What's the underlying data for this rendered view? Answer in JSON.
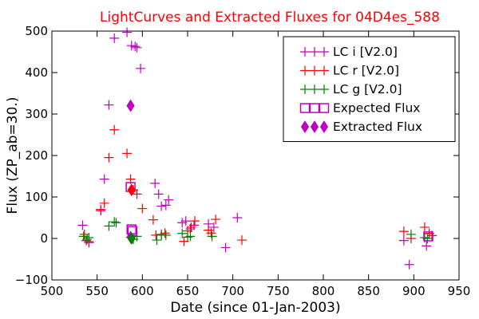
{
  "chart_data": {
    "type": "scatter",
    "title": "LightCurves and Extracted Fluxes for 04D4es_588",
    "xlabel": "Date (since 01-Jan-2003)",
    "ylabel": "Flux (ZP_ab=30.)",
    "xlim": [
      500,
      950
    ],
    "ylim": [
      -100,
      500
    ],
    "xticks": [
      500,
      550,
      600,
      650,
      700,
      750,
      800,
      850,
      900,
      950
    ],
    "yticks": [
      -100,
      0,
      100,
      200,
      300,
      400,
      500
    ],
    "grid": false,
    "legend_position": "top-right",
    "colors": {
      "title": "#ff0000",
      "i": "#bf00bf",
      "r": "#ff0000",
      "g": "#008000",
      "expected": "#bf00bf",
      "extracted": "#bf00bf"
    },
    "series": [
      {
        "name": "LC i [V2.0]",
        "marker": "plus",
        "color": "#bf00bf",
        "points": [
          [
            534,
            32
          ],
          [
            538,
            -5
          ],
          [
            541,
            -10
          ],
          [
            554,
            67
          ],
          [
            558,
            143
          ],
          [
            563,
            322
          ],
          [
            569,
            483
          ],
          [
            583,
            497
          ],
          [
            588,
            465
          ],
          [
            592,
            463
          ],
          [
            594,
            460
          ],
          [
            598,
            410
          ],
          [
            614,
            133
          ],
          [
            618,
            107
          ],
          [
            621,
            78
          ],
          [
            626,
            80
          ],
          [
            629,
            93
          ],
          [
            644,
            38
          ],
          [
            648,
            42
          ],
          [
            653,
            23
          ],
          [
            657,
            32
          ],
          [
            673,
            35
          ],
          [
            679,
            27
          ],
          [
            692,
            -22
          ],
          [
            705,
            50
          ],
          [
            889,
            -5
          ],
          [
            895,
            -63
          ],
          [
            914,
            -18
          ],
          [
            917,
            12
          ]
        ]
      },
      {
        "name": "LC r [V2.0]",
        "marker": "plus",
        "color": "#ff0000",
        "points": [
          [
            536,
            10
          ],
          [
            541,
            -8
          ],
          [
            554,
            70
          ],
          [
            558,
            85
          ],
          [
            563,
            195
          ],
          [
            569,
            262
          ],
          [
            583,
            205
          ],
          [
            587,
            143
          ],
          [
            590,
            117
          ],
          [
            594,
            107
          ],
          [
            600,
            72
          ],
          [
            612,
            45
          ],
          [
            615,
            8
          ],
          [
            621,
            10
          ],
          [
            625,
            13
          ],
          [
            646,
            -7
          ],
          [
            650,
            18
          ],
          [
            654,
            27
          ],
          [
            658,
            42
          ],
          [
            673,
            20
          ],
          [
            676,
            13
          ],
          [
            681,
            46
          ],
          [
            710,
            -4
          ],
          [
            889,
            17
          ],
          [
            897,
            0
          ],
          [
            912,
            27
          ],
          [
            917,
            12
          ],
          [
            920,
            7
          ]
        ]
      },
      {
        "name": "LC g [V2.0]",
        "marker": "plus",
        "color": "#008000",
        "points": [
          [
            535,
            5
          ],
          [
            539,
            -2
          ],
          [
            541,
            2
          ],
          [
            563,
            30
          ],
          [
            569,
            40
          ],
          [
            571,
            38
          ],
          [
            587,
            3
          ],
          [
            590,
            -2
          ],
          [
            594,
            5
          ],
          [
            616,
            -4
          ],
          [
            621,
            8
          ],
          [
            626,
            8
          ],
          [
            644,
            12
          ],
          [
            650,
            3
          ],
          [
            653,
            5
          ],
          [
            677,
            5
          ],
          [
            897,
            10
          ],
          [
            912,
            2
          ],
          [
            915,
            0
          ]
        ]
      },
      {
        "name": "Expected Flux",
        "marker": "square",
        "color": "#bf00bf",
        "points": [
          [
            587,
            124
          ],
          [
            588,
            22
          ],
          [
            589,
            18
          ],
          [
            916,
            5
          ]
        ]
      },
      {
        "name": "Extracted Flux",
        "marker": "diamond",
        "color": "#bf00bf",
        "points": [
          [
            587,
            320
          ],
          [
            587,
            3
          ]
        ]
      },
      {
        "name": "Extracted Flux",
        "marker": "diamond",
        "color": "#ff0000",
        "legend": false,
        "points": [
          [
            588,
            117
          ]
        ]
      },
      {
        "name": "Extracted Flux",
        "marker": "diamond",
        "color": "#008000",
        "legend": false,
        "points": [
          [
            588,
            0
          ]
        ]
      }
    ]
  }
}
